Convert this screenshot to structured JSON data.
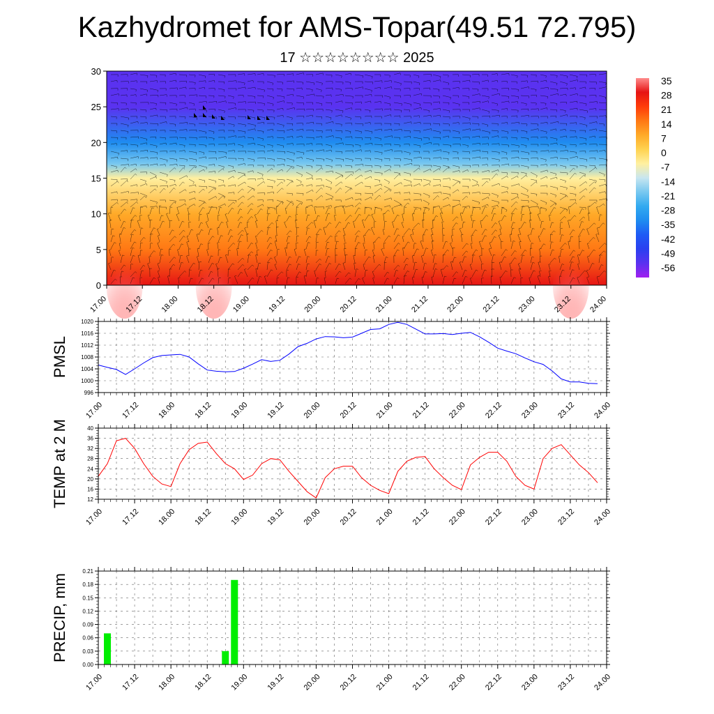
{
  "header": {
    "title": "Kazhydromet for AMS-Topar(49.51 72.795)",
    "subtitle": "17 ☆☆☆☆☆☆☆☆ 2025"
  },
  "time_ticks": [
    "17.00",
    "17.12",
    "18.00",
    "18.12",
    "19.00",
    "19.12",
    "20.00",
    "20.12",
    "21.00",
    "21.12",
    "22.00",
    "22.12",
    "23.00",
    "23.12",
    "24.00"
  ],
  "colors": {
    "pmsl_line": "#0000ff",
    "temp_line": "#ff0000",
    "precip_bar": "#00ee00",
    "colorbar": [
      "#a020f0",
      "#5a32f0",
      "#2a40f0",
      "#1e5af5",
      "#1e8cf0",
      "#32aaf0",
      "#78c8f0",
      "#c8e6f0",
      "#fff0a0",
      "#ffd250",
      "#ffaa28",
      "#ff7814",
      "#ff3c0a",
      "#e61414",
      "#ff8c8c"
    ]
  },
  "chart_data": [
    {
      "type": "heatmap",
      "title": "",
      "xlabel": "",
      "ylabel": "",
      "xlim": [
        0,
        168
      ],
      "ylim": [
        0,
        30
      ],
      "yticks": [
        0,
        5,
        10,
        15,
        20,
        25,
        30
      ],
      "colorbar_labels": [
        "35",
        "28",
        "21",
        "14",
        "7",
        "0",
        "-7",
        "-14",
        "-21",
        "-28",
        "-35",
        "-42",
        "-49",
        "-56"
      ],
      "colorbar_range": [
        -60,
        40
      ],
      "temperature_profile": {
        "height_levels": [
          0,
          5,
          10,
          15,
          17,
          20,
          25,
          30
        ],
        "values": [
          30,
          20,
          8,
          -5,
          -15,
          -35,
          -50,
          -55
        ]
      },
      "wind_barbs": "dense wind-barb field overlaid on temperature shading"
    },
    {
      "type": "line",
      "ylabel": "PMSL",
      "ylim": [
        996,
        1020
      ],
      "yticks": [
        996,
        1000,
        1004,
        1008,
        1012,
        1016,
        1020
      ],
      "x_hours": [
        0,
        3,
        6,
        9,
        12,
        15,
        18,
        21,
        24,
        27,
        30,
        33,
        36,
        39,
        42,
        45,
        48,
        51,
        54,
        57,
        60,
        63,
        66,
        69,
        72,
        75,
        78,
        81,
        84,
        87,
        90,
        93,
        96,
        99,
        102,
        105,
        108,
        111,
        114,
        117,
        120,
        123,
        126,
        129,
        132,
        135,
        138,
        141,
        144,
        147,
        150,
        153,
        156,
        159,
        162,
        165
      ],
      "series": [
        {
          "values": [
            1005.3,
            1004.5,
            1003.8,
            1002.1,
            1004.0,
            1006.0,
            1007.8,
            1008.5,
            1008.7,
            1008.9,
            1008.0,
            1005.7,
            1003.6,
            1003.2,
            1003.0,
            1003.1,
            1004.2,
            1005.6,
            1007.1,
            1006.5,
            1006.9,
            1009.0,
            1011.5,
            1012.6,
            1014.1,
            1014.9,
            1014.8,
            1014.5,
            1014.7,
            1016.0,
            1017.3,
            1017.5,
            1019.0,
            1019.7,
            1019.0,
            1017.4,
            1015.8,
            1015.8,
            1015.9,
            1015.6,
            1016.0,
            1016.3,
            1014.8,
            1013.0,
            1011.0,
            1010.0,
            1009.1,
            1007.7,
            1006.4,
            1005.5,
            1003.3,
            1000.6,
            999.6,
            999.6,
            999.1,
            999.0
          ]
        }
      ]
    },
    {
      "type": "line",
      "ylabel": "TEMP at 2 M",
      "ylim": [
        12,
        40
      ],
      "yticks": [
        12,
        16,
        20,
        24,
        28,
        32,
        36,
        40
      ],
      "x_hours": [
        0,
        3,
        6,
        9,
        12,
        15,
        18,
        21,
        24,
        27,
        30,
        33,
        36,
        39,
        42,
        45,
        48,
        51,
        54,
        57,
        60,
        63,
        66,
        69,
        72,
        75,
        78,
        81,
        84,
        87,
        90,
        93,
        96,
        99,
        102,
        105,
        108,
        111,
        114,
        117,
        120,
        123,
        126,
        129,
        132,
        135,
        138,
        141,
        144,
        147,
        150,
        153,
        156,
        159,
        162,
        165
      ],
      "series": [
        {
          "values": [
            21,
            26,
            35,
            36,
            32,
            26,
            21,
            18,
            17,
            26,
            31.5,
            34,
            34.5,
            30,
            26,
            24,
            19.8,
            21.5,
            26,
            28,
            27.5,
            23,
            19,
            15,
            12.5,
            20.5,
            24,
            25,
            25,
            20.5,
            17.5,
            15.5,
            14.2,
            23,
            27,
            28.5,
            28.8,
            24,
            20.5,
            17.5,
            15.8,
            25.5,
            28.5,
            30.5,
            30.5,
            27,
            21,
            17.5,
            16,
            28,
            32,
            33.5,
            29.5,
            25.5,
            22.5,
            18.5
          ]
        }
      ]
    },
    {
      "type": "bar",
      "ylabel": "PRECIP, mm",
      "ylim": [
        0,
        0.21
      ],
      "yticks": [
        "0.00",
        "0.03",
        "0.06",
        "0.09",
        "0.12",
        "0.15",
        "0.18",
        "0.21"
      ],
      "x_hours": [
        3,
        42,
        45
      ],
      "values": [
        0.07,
        0.03,
        0.19
      ]
    }
  ]
}
